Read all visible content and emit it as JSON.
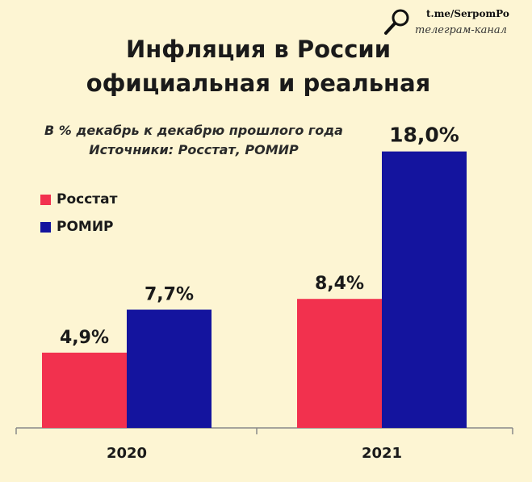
{
  "title_line1": "Инфляция в России",
  "title_line2": "официальная и реальная",
  "subtitle_line1": "В % декабрь к декабрю прошлого года",
  "subtitle_line2": "Источники: Росстат, РОМИР",
  "watermark": {
    "link": "t.me/SerpomPo",
    "caption": "телеграм-канал",
    "icon": "magnifier-icon"
  },
  "colors": {
    "rosstat": "#f2314e",
    "romir": "#14149e",
    "background": "#fdf5d3"
  },
  "chart_data": {
    "type": "bar",
    "categories": [
      "2020",
      "2021"
    ],
    "series": [
      {
        "name": "Росстат",
        "values": [
          4.9,
          8.4
        ],
        "labels": [
          "4,9%",
          "8,4%"
        ]
      },
      {
        "name": "РОМИР",
        "values": [
          7.7,
          18.0
        ],
        "labels": [
          "7,7%",
          "18,0%"
        ]
      }
    ],
    "ylim": [
      0,
      18.8
    ],
    "grid": false,
    "legend_position": "top-left"
  }
}
